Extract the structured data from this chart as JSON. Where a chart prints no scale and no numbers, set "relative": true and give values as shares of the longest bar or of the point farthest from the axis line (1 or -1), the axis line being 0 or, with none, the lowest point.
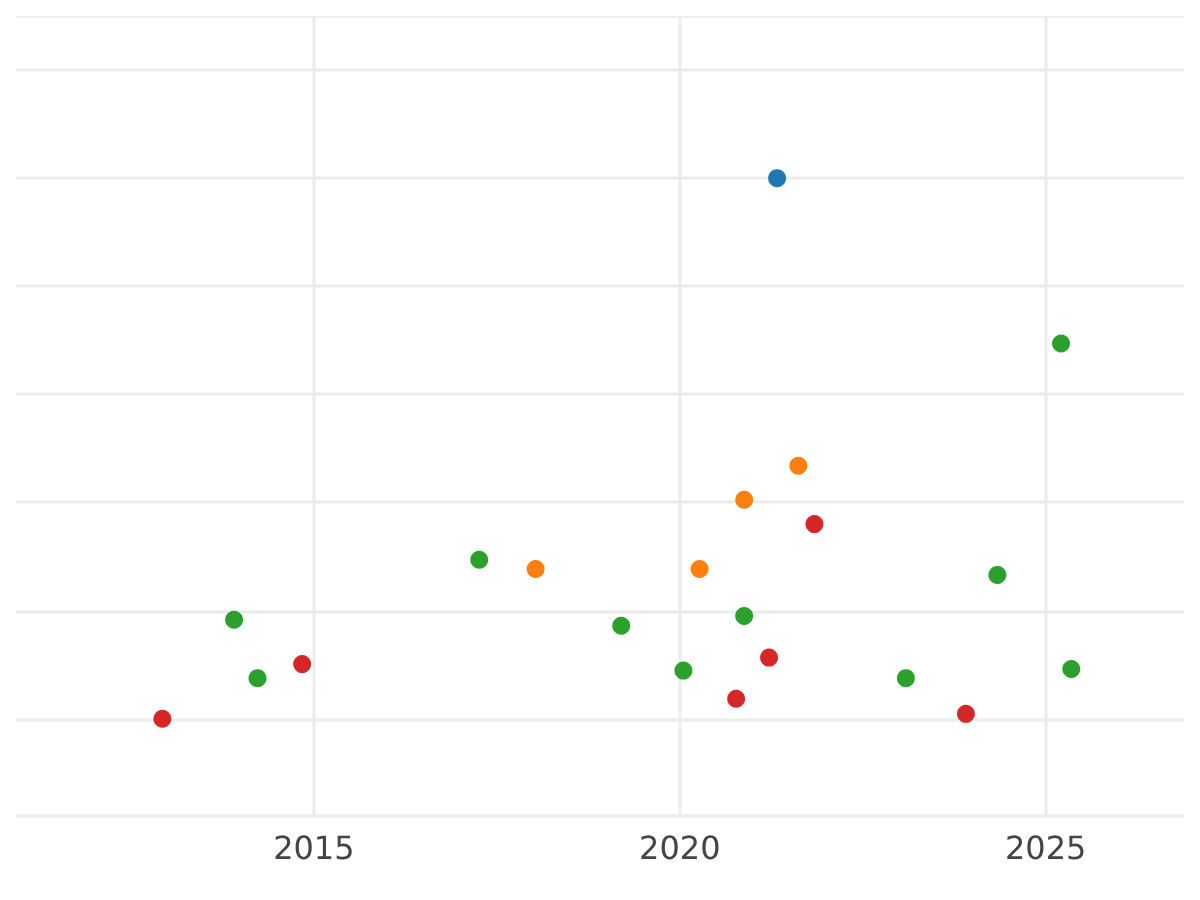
{
  "chart_data": {
    "type": "scatter",
    "relative": true,
    "grid": true,
    "marker": "circle",
    "xlim": [
      2010.93,
      2026.89
    ],
    "xticks": [
      2015,
      2020,
      2025
    ],
    "series": [
      {
        "color": "#1f77b4",
        "x": [
          2021.33
        ],
        "values": [
          1
        ]
      },
      {
        "color": "#ff7f0e",
        "x": [
          2018.03,
          2020.27,
          2020.88,
          2021.62
        ],
        "values": [
          0.277,
          0.277,
          0.405,
          0.468
        ]
      },
      {
        "color": "#2ca02c",
        "x": [
          2013.91,
          2014.23,
          2017.26,
          2019.2,
          2020.05,
          2020.88,
          2023.09,
          2024.34,
          2025.21,
          2025.35
        ],
        "values": [
          0.183,
          0.075,
          0.294,
          0.172,
          0.089,
          0.19,
          0.075,
          0.266,
          0.694,
          0.092
        ]
      },
      {
        "color": "#d62728",
        "x": [
          2012.93,
          2014.84,
          2021.22,
          2020.77,
          2021.84,
          2023.91
        ],
        "values": [
          0,
          0.101,
          0.113,
          0.037,
          0.36,
          0.009
        ]
      }
    ]
  }
}
